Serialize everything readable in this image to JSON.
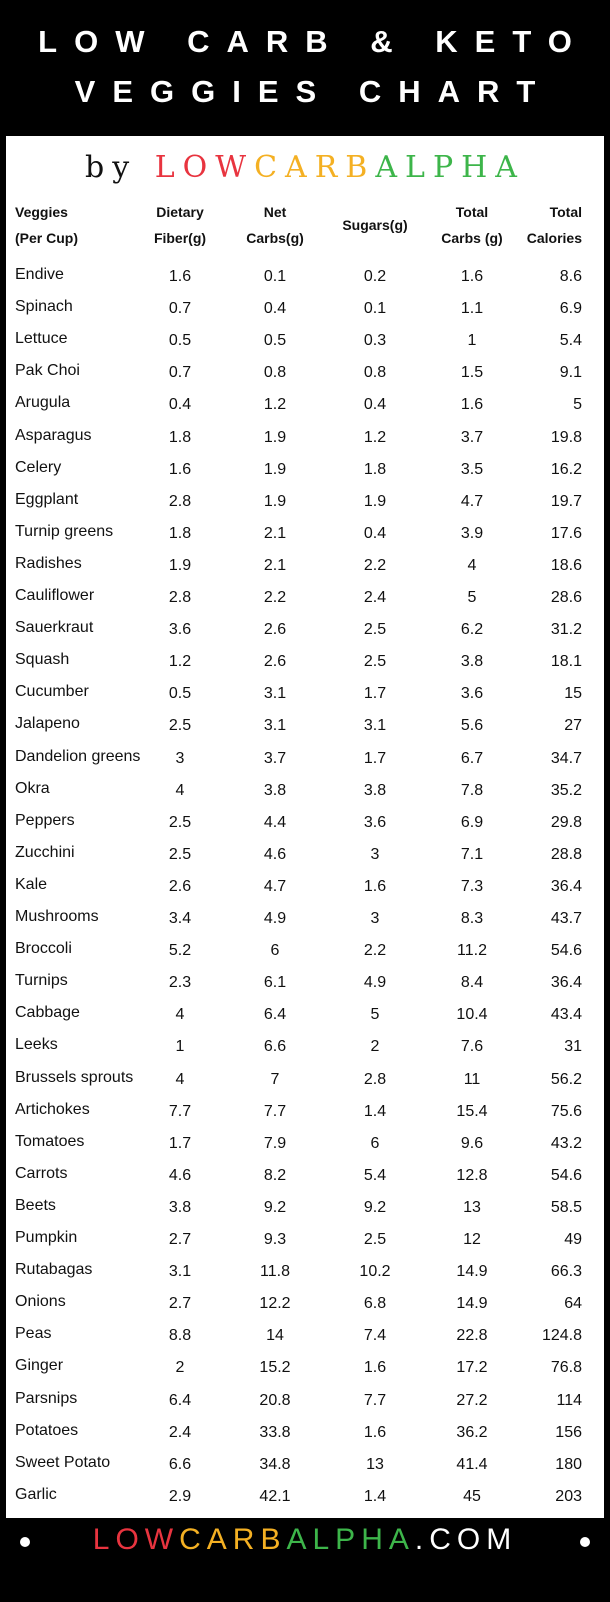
{
  "header": {
    "title_lines": [
      "LOW CARB & KETO",
      "VEGGIES CHART"
    ]
  },
  "byline": {
    "prefix": "by",
    "parts": [
      "LOW",
      "CARB",
      "ALPHA"
    ]
  },
  "table": {
    "columns": [
      [
        "Veggies",
        "(Per Cup)"
      ],
      [
        "Dietary",
        "Fiber(g)"
      ],
      [
        "Net",
        "Carbs(g)"
      ],
      [
        "Sugars(g)"
      ],
      [
        "Total",
        "Carbs (g)"
      ],
      [
        "Total",
        "Calories"
      ]
    ],
    "rows": [
      [
        "Endive",
        1.6,
        0.1,
        0.2,
        1.6,
        8.6
      ],
      [
        "Spinach",
        0.7,
        0.4,
        0.1,
        1.1,
        6.9
      ],
      [
        "Lettuce",
        0.5,
        0.5,
        0.3,
        1,
        5.4
      ],
      [
        "Pak Choi",
        0.7,
        0.8,
        0.8,
        1.5,
        9.1
      ],
      [
        "Arugula",
        0.4,
        1.2,
        0.4,
        1.6,
        5
      ],
      [
        "Asparagus",
        1.8,
        1.9,
        1.2,
        3.7,
        19.8
      ],
      [
        "Celery",
        1.6,
        1.9,
        1.8,
        3.5,
        16.2
      ],
      [
        "Eggplant",
        2.8,
        1.9,
        1.9,
        4.7,
        19.7
      ],
      [
        "Turnip greens",
        1.8,
        2.1,
        0.4,
        3.9,
        17.6
      ],
      [
        "Radishes",
        1.9,
        2.1,
        2.2,
        4,
        18.6
      ],
      [
        "Cauliflower",
        2.8,
        2.2,
        2.4,
        5,
        28.6
      ],
      [
        "Sauerkraut",
        3.6,
        2.6,
        2.5,
        6.2,
        31.2
      ],
      [
        "Squash",
        1.2,
        2.6,
        2.5,
        3.8,
        18.1
      ],
      [
        "Cucumber",
        0.5,
        3.1,
        1.7,
        3.6,
        15
      ],
      [
        "Jalapeno",
        2.5,
        3.1,
        3.1,
        5.6,
        27
      ],
      [
        "Dandelion greens",
        3,
        3.7,
        1.7,
        6.7,
        34.7
      ],
      [
        "Okra",
        4,
        3.8,
        3.8,
        7.8,
        35.2
      ],
      [
        "Peppers",
        2.5,
        4.4,
        3.6,
        6.9,
        29.8
      ],
      [
        "Zucchini",
        2.5,
        4.6,
        3,
        7.1,
        28.8
      ],
      [
        "Kale",
        2.6,
        4.7,
        1.6,
        7.3,
        36.4
      ],
      [
        "Mushrooms",
        3.4,
        4.9,
        3,
        8.3,
        43.7
      ],
      [
        "Broccoli",
        5.2,
        6,
        2.2,
        11.2,
        54.6
      ],
      [
        "Turnips",
        2.3,
        6.1,
        4.9,
        8.4,
        36.4
      ],
      [
        "Cabbage",
        4,
        6.4,
        5,
        10.4,
        43.4
      ],
      [
        "Leeks",
        1,
        6.6,
        2,
        7.6,
        31
      ],
      [
        "Brussels sprouts",
        4,
        7,
        2.8,
        11,
        56.2
      ],
      [
        "Artichokes",
        7.7,
        7.7,
        1.4,
        15.4,
        75.6
      ],
      [
        "Tomatoes",
        1.7,
        7.9,
        6,
        9.6,
        43.2
      ],
      [
        "Carrots",
        4.6,
        8.2,
        5.4,
        12.8,
        54.6
      ],
      [
        "Beets",
        3.8,
        9.2,
        9.2,
        13,
        58.5
      ],
      [
        "Pumpkin",
        2.7,
        9.3,
        2.5,
        12,
        49
      ],
      [
        "Rutabagas",
        3.1,
        11.8,
        10.2,
        14.9,
        66.3
      ],
      [
        "Onions",
        2.7,
        12.2,
        6.8,
        14.9,
        64
      ],
      [
        "Peas",
        8.8,
        14,
        7.4,
        22.8,
        124.8
      ],
      [
        "Ginger",
        2,
        15.2,
        1.6,
        17.2,
        76.8
      ],
      [
        "Parsnips",
        6.4,
        20.8,
        7.7,
        27.2,
        114
      ],
      [
        "Potatoes",
        2.4,
        33.8,
        1.6,
        36.2,
        156
      ],
      [
        "Sweet Potato",
        6.6,
        34.8,
        13,
        41.4,
        180
      ],
      [
        "Garlic",
        2.9,
        42.1,
        1.4,
        45,
        203
      ]
    ]
  },
  "footer": {
    "parts": [
      "LOW",
      "CARB",
      "ALPHA",
      ".COM"
    ]
  }
}
